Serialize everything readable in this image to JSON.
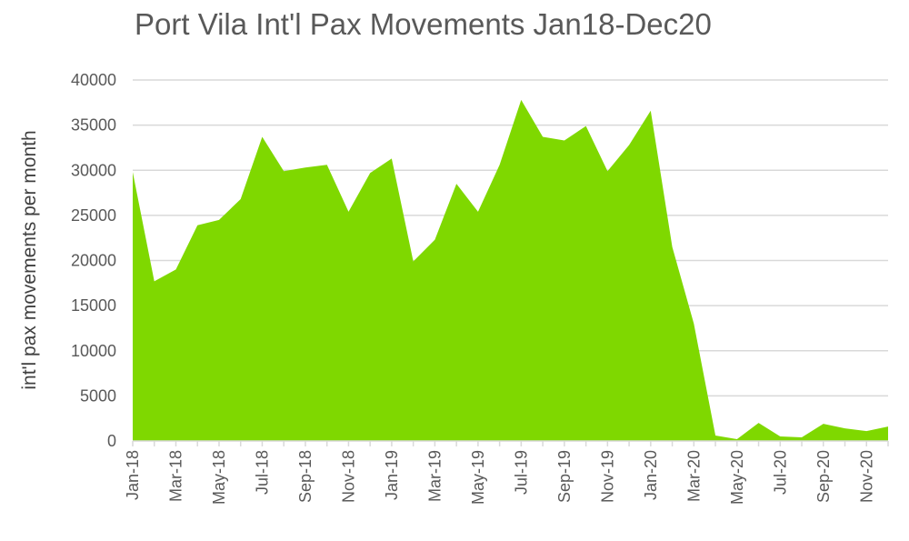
{
  "chart_data": {
    "type": "area",
    "title": "Port Vila Int'l Pax Movements Jan18-Dec20",
    "xlabel": "",
    "ylabel": "int'l pax movements per month",
    "ylim": [
      0,
      40000
    ],
    "yticks": [
      0,
      5000,
      10000,
      15000,
      20000,
      25000,
      30000,
      35000,
      40000
    ],
    "grid": true,
    "legend": "none",
    "color": "#7FD800",
    "gridColor": "#d9d9d9",
    "categories": [
      "Jan-18",
      "Feb-18",
      "Mar-18",
      "Apr-18",
      "May-18",
      "Jun-18",
      "Jul-18",
      "Aug-18",
      "Sep-18",
      "Oct-18",
      "Nov-18",
      "Dec-18",
      "Jan-19",
      "Feb-19",
      "Mar-19",
      "Apr-19",
      "May-19",
      "Jun-19",
      "Jul-19",
      "Aug-19",
      "Sep-19",
      "Oct-19",
      "Nov-19",
      "Dec-19",
      "Jan-20",
      "Feb-20",
      "Mar-20",
      "Apr-20",
      "May-20",
      "Jun-20",
      "Jul-20",
      "Aug-20",
      "Sep-20",
      "Oct-20",
      "Nov-20",
      "Dec-20"
    ],
    "tick_labels": [
      "Jan-18",
      "Mar-18",
      "May-18",
      "Jul-18",
      "Sep-18",
      "Nov-18",
      "Jan-19",
      "Mar-19",
      "May-19",
      "Jul-19",
      "Sep-19",
      "Nov-19",
      "Jan-20",
      "Mar-20",
      "May-20",
      "Jul-20",
      "Sep-20",
      "Nov-20"
    ],
    "values": [
      29800,
      17700,
      19000,
      23900,
      24500,
      26800,
      33700,
      29900,
      30300,
      30600,
      25400,
      29700,
      31300,
      19900,
      22300,
      28500,
      25400,
      30600,
      37800,
      33700,
      33300,
      34900,
      29900,
      32800,
      36600,
      21500,
      13000,
      600,
      200,
      2000,
      500,
      400,
      1900,
      1400,
      1100,
      1600
    ]
  }
}
